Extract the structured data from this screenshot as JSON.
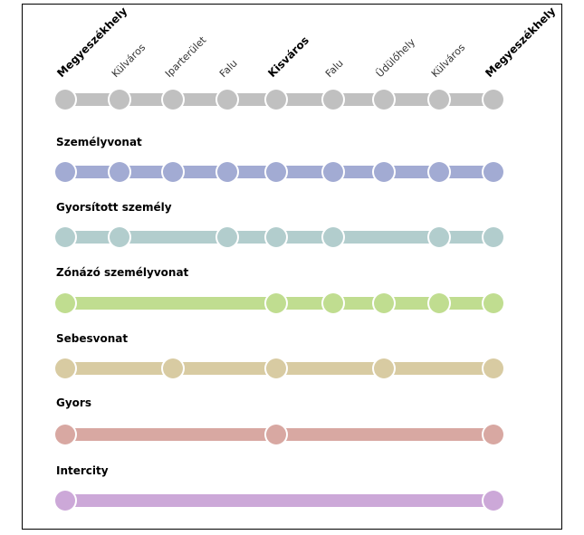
{
  "stops": [
    {
      "label": "Megyeszékhely",
      "bold": true
    },
    {
      "label": "Külváros",
      "bold": false
    },
    {
      "label": "Iparterület",
      "bold": false
    },
    {
      "label": "Falu",
      "bold": false
    },
    {
      "label": "Kisváros",
      "bold": true
    },
    {
      "label": "Falu",
      "bold": false
    },
    {
      "label": "Üdülőhely",
      "bold": false
    },
    {
      "label": "Külváros",
      "bold": false
    },
    {
      "label": "Megyeszékhely",
      "bold": true
    }
  ],
  "overview": {
    "color": "#c0c0c0",
    "stops": [
      0,
      1,
      2,
      3,
      4,
      5,
      6,
      7,
      8
    ]
  },
  "lines": [
    {
      "name": "Személyvonat",
      "color": "#a2abd3",
      "stops": [
        0,
        1,
        2,
        3,
        4,
        5,
        6,
        7,
        8
      ]
    },
    {
      "name": "Gyorsított személy",
      "color": "#b2cdcd",
      "stops": [
        0,
        1,
        3,
        4,
        5,
        7,
        8
      ]
    },
    {
      "name": "Zónázó személyvonat",
      "color": "#c0dd90",
      "stops": [
        0,
        4,
        5,
        6,
        7,
        8
      ]
    },
    {
      "name": "Sebesvonat",
      "color": "#d8cba2",
      "stops": [
        0,
        2,
        4,
        6,
        8
      ]
    },
    {
      "name": "Gyors",
      "color": "#d8a8a2",
      "stops": [
        0,
        4,
        8
      ]
    },
    {
      "name": "Intercity",
      "color": "#cca8d8",
      "stops": [
        0,
        8
      ]
    }
  ]
}
